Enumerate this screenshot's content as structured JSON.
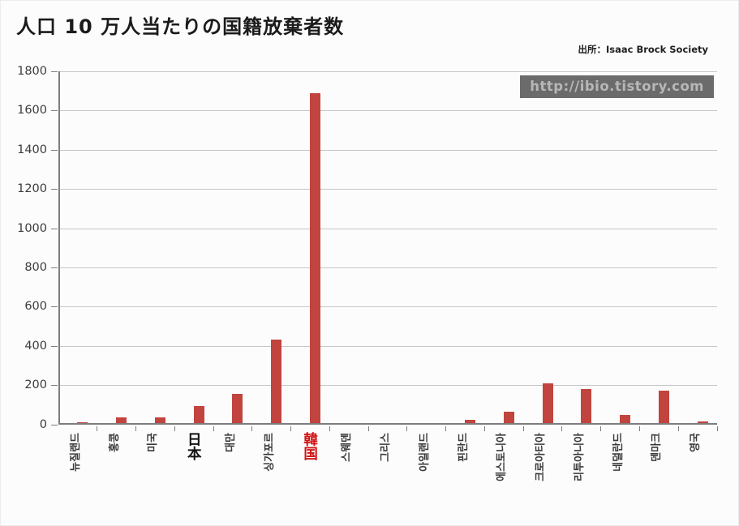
{
  "header": {
    "title": "人口 10 万人当たりの国籍放棄者数",
    "source": "出所：Isaac Brock Society"
  },
  "watermark": {
    "text": "http://ibio.tistory.com",
    "bg_color": "#6b6b6b",
    "text_color": "#b7b7b7"
  },
  "chart_data": {
    "type": "bar",
    "title": "人口 10 万人当たりの国籍放棄者数",
    "source": "出所：Isaac Brock Society",
    "categories": [
      "뉴질랜드",
      "홍콩",
      "미국",
      "日本",
      "대만",
      "싱가포르",
      "韓国",
      "스웨덴",
      "그리스",
      "아일랜드",
      "핀란드",
      "에스토니아",
      "크로아티아",
      "리투아니아",
      "네덜란드",
      "덴마크",
      "영국"
    ],
    "category_ids": [
      "new-zealand",
      "hong-kong",
      "usa",
      "japan",
      "taiwan",
      "singapore",
      "south-korea",
      "sweden",
      "greece",
      "ireland",
      "finland",
      "estonia",
      "croatia",
      "lithuania",
      "netherlands",
      "denmark",
      "uk"
    ],
    "category_styles": [
      "rotated",
      "rotated",
      "rotated",
      "upright-black",
      "rotated",
      "rotated",
      "upright-red",
      "rotated",
      "rotated",
      "rotated",
      "rotated",
      "rotated",
      "rotated",
      "rotated",
      "rotated",
      "rotated",
      "rotated"
    ],
    "values": [
      3,
      25,
      28,
      85,
      145,
      425,
      1680,
      0,
      0,
      0,
      13,
      55,
      200,
      170,
      40,
      165,
      8
    ],
    "xlabel": "",
    "ylabel": "",
    "ylim": [
      0,
      1800
    ],
    "ytick_step": 200,
    "grid": true,
    "legend": false,
    "bar_color": "#c1443e",
    "label_color_default": "#3a3a3a",
    "label_color_japan": "#111111",
    "label_color_korea": "#d11414"
  }
}
